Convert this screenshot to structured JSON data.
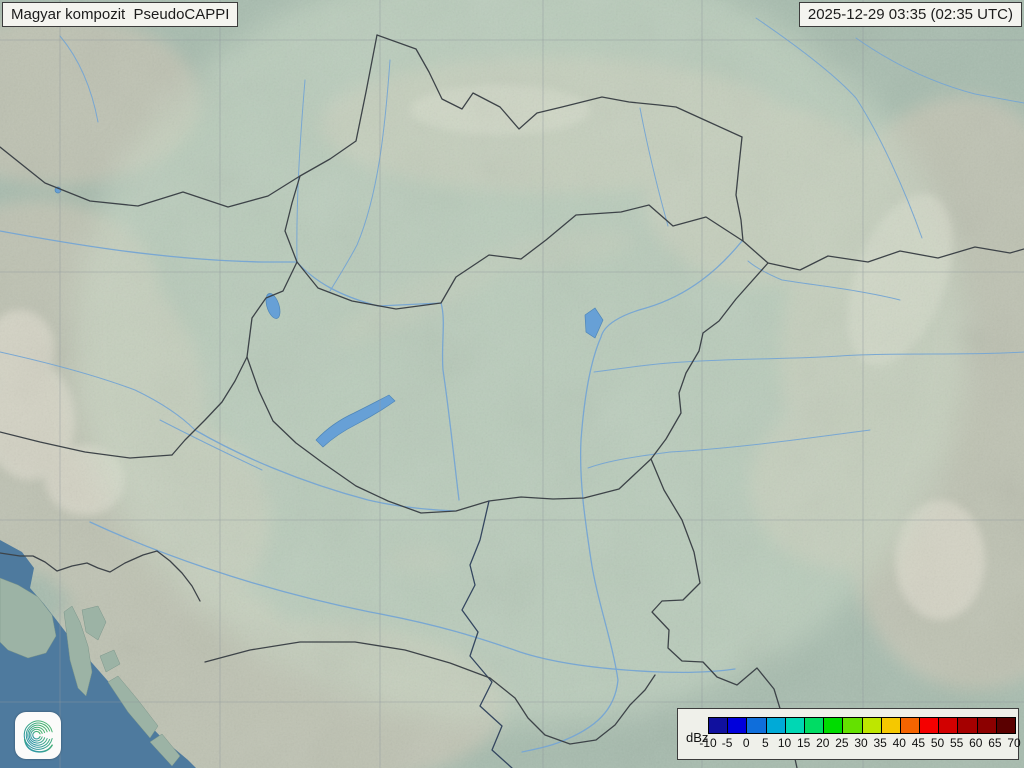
{
  "header": {
    "product_title": "Magyar kompozit  PseudoCAPPI",
    "timestamp": "2025-12-29 03:35 (02:35 UTC)"
  },
  "colorbar": {
    "unit_label": "dBz",
    "tick_labels": [
      "-10",
      "-5",
      "0",
      "5",
      "10",
      "15",
      "20",
      "25",
      "30",
      "35",
      "40",
      "45",
      "50",
      "55",
      "60",
      "65",
      "70"
    ],
    "cell_colors": [
      "#10109e",
      "#0000dc",
      "#0f6edb",
      "#00aad7",
      "#00d7b4",
      "#00dc64",
      "#00dc00",
      "#64e100",
      "#bee600",
      "#f5c800",
      "#f56400",
      "#f50000",
      "#d20000",
      "#a50000",
      "#8c0000",
      "#5a0000"
    ]
  },
  "map": {
    "colors": {
      "terrain": "#a7bcae",
      "radar_coverage": "#ccdcc8",
      "sea": "#4e7a9e",
      "river": "#79a7d2",
      "lake": "#67a0d6",
      "border": "#3d4348",
      "border_water": "#34465f",
      "grid": "#8f979c"
    }
  },
  "logo": {
    "icon": "spiral-swirl-logo",
    "colors": [
      "#2b8fb0",
      "#3aa887",
      "#52b968"
    ]
  }
}
